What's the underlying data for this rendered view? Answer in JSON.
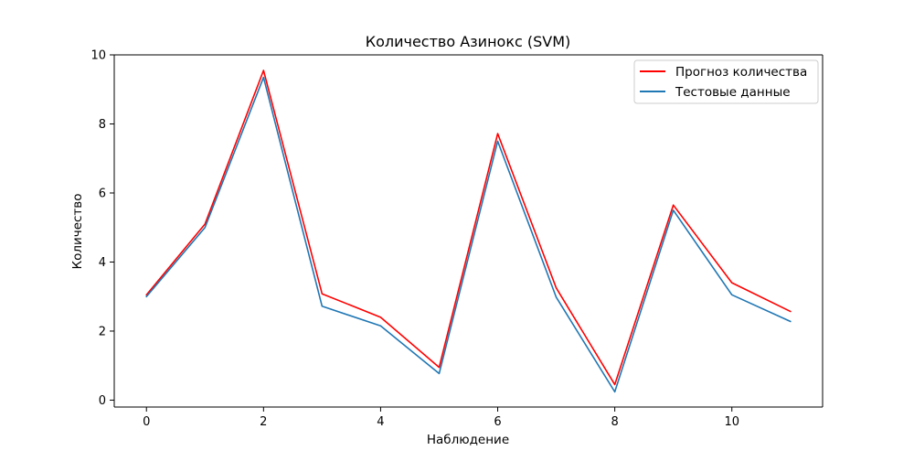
{
  "chart_data": {
    "type": "line",
    "title": "Количество Азинокс  (SVM)",
    "xlabel": "Наблюдение",
    "ylabel": "Количество",
    "xlim": [
      -0.55,
      11.55
    ],
    "ylim": [
      -0.2,
      10.0
    ],
    "xticks": [
      0,
      2,
      4,
      6,
      8,
      10
    ],
    "yticks": [
      0,
      2,
      4,
      6,
      8,
      10
    ],
    "x": [
      0,
      1,
      2,
      3,
      4,
      5,
      6,
      7,
      8,
      9,
      10,
      11
    ],
    "series": [
      {
        "name": "Прогноз количества",
        "color": "#ff0000",
        "values": [
          3.05,
          5.1,
          9.55,
          3.08,
          2.4,
          0.95,
          7.72,
          3.25,
          0.45,
          5.65,
          3.4,
          2.57
        ]
      },
      {
        "name": "Тестовые данные",
        "color": "#1f77b4",
        "values": [
          3.0,
          5.0,
          9.35,
          2.72,
          2.15,
          0.77,
          7.5,
          2.98,
          0.24,
          5.5,
          3.05,
          2.28
        ]
      }
    ],
    "grid": false,
    "legend_position": "upper right"
  }
}
